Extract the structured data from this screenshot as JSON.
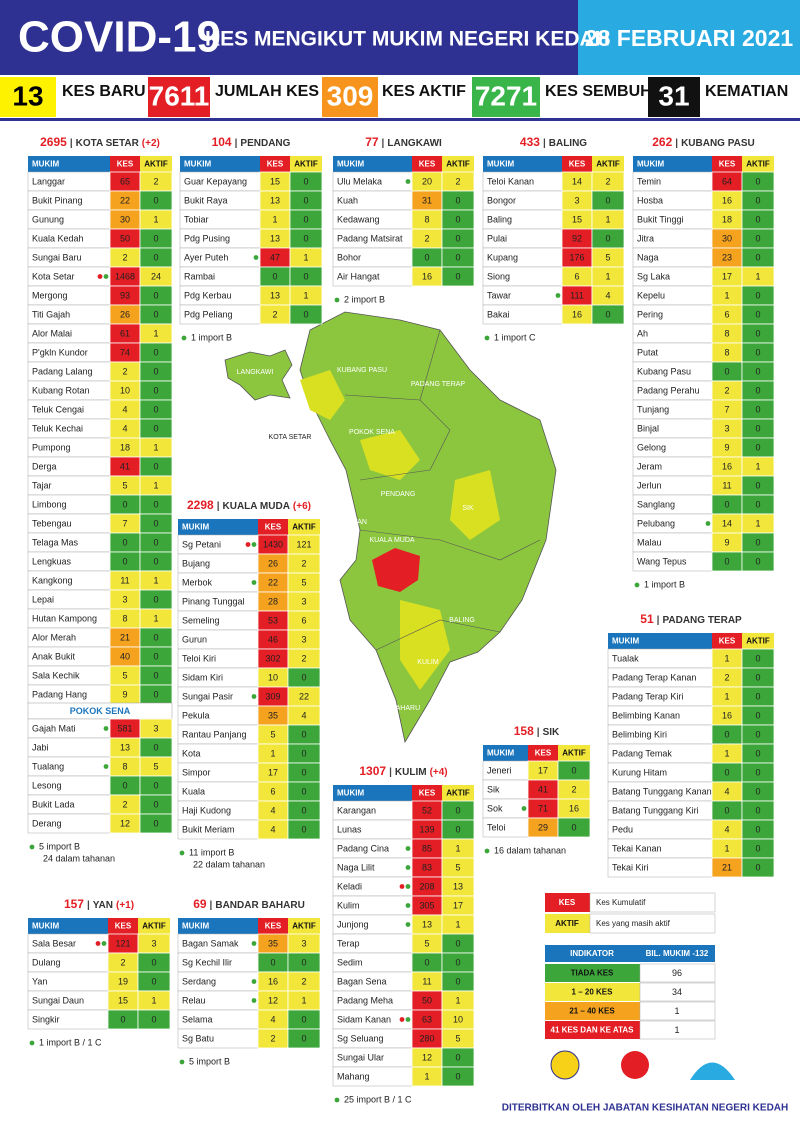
{
  "header": {
    "title": "COVID-19",
    "subtitle": "KES MENGIKUT MUKIM NEGERI KEDAH",
    "date": "28 FEBRUARI 2021"
  },
  "summary": [
    {
      "value": 13,
      "label": "KES BARU",
      "color": "#fff200",
      "text_color": "#000000"
    },
    {
      "value": 7611,
      "label": "JUMLAH KES",
      "color": "#e31e24",
      "text_color": "#ffffff"
    },
    {
      "value": 309,
      "label": "KES AKTIF",
      "color": "#f7941d",
      "text_color": "#ffffff"
    },
    {
      "value": 7271,
      "label": "KES SEMBUH",
      "color": "#39b54a",
      "text_color": "#ffffff"
    },
    {
      "value": 31,
      "label": "KEMATIAN",
      "color": "#111111",
      "text_color": "#ffffff"
    }
  ],
  "table_headers": [
    "MUKIM",
    "KES",
    "AKTIF"
  ],
  "kes_colors": [
    {
      "max": 0,
      "color": "#3da63a"
    },
    {
      "max": 20,
      "color": "#f2e63a"
    },
    {
      "max": 40,
      "color": "#f5a21e"
    },
    {
      "color": "#e31e24"
    }
  ],
  "aktif_colors": [
    {
      "max": 0,
      "color": "#3da63a"
    },
    {
      "color": "#f2e63a"
    }
  ],
  "tables": [
    {
      "total": 2695,
      "name": "KOTA SETAR",
      "extra": "(+2)",
      "rows": [
        [
          "Langgar",
          65,
          2
        ],
        [
          "Bukit Pinang",
          22,
          0
        ],
        [
          "Gunung",
          30,
          1
        ],
        [
          "Kuala Kedah",
          50,
          0
        ],
        [
          "Sungai Baru",
          2,
          0
        ],
        [
          "Kota Setar",
          1468,
          24,
          [
            "#e31e24",
            "#3da63a"
          ]
        ],
        [
          "Mergong",
          93,
          0
        ],
        [
          "Titi Gajah",
          26,
          0
        ],
        [
          "Alor Malai",
          61,
          1
        ],
        [
          "P'gkln Kundor",
          74,
          0
        ],
        [
          "Padang Lalang",
          2,
          0
        ],
        [
          "Kubang Rotan",
          10,
          0
        ],
        [
          "Teluk Cengai",
          4,
          0
        ],
        [
          "Teluk Kechai",
          4,
          0
        ],
        [
          "Pumpong",
          18,
          1
        ],
        [
          "Derga",
          41,
          0
        ],
        [
          "Tajar",
          5,
          1
        ],
        [
          "Limbong",
          0,
          0
        ],
        [
          "Tebengau",
          7,
          0
        ],
        [
          "Telaga Mas",
          0,
          0
        ],
        [
          "Lengkuas",
          0,
          0
        ],
        [
          "Kangkong",
          11,
          1
        ],
        [
          "Lepai",
          3,
          0
        ],
        [
          "Hutan Kampong",
          8,
          1
        ],
        [
          "Alor Merah",
          21,
          0
        ],
        [
          "Anak Bukit",
          40,
          0
        ],
        [
          "Sala Kechik",
          5,
          0
        ],
        [
          "Padang Hang",
          9,
          0
        ]
      ]
    },
    {
      "name": "POKOK SENA",
      "rows": [
        [
          "Gajah Mati",
          581,
          3,
          [
            "#3da63a"
          ]
        ],
        [
          "Jabi",
          13,
          0
        ],
        [
          "Tualang",
          8,
          5,
          [
            "#3da63a"
          ]
        ],
        [
          "Lesong",
          0,
          0
        ],
        [
          "Bukit Lada",
          2,
          0
        ],
        [
          "Derang",
          12,
          0
        ]
      ],
      "notes": [
        "5 import B",
        "24 dalam tahanan"
      ]
    },
    {
      "total": 104,
      "name": "PENDANG",
      "rows": [
        [
          "Guar Kepayang",
          15,
          0
        ],
        [
          "Bukit Raya",
          13,
          0
        ],
        [
          "Tobiar",
          1,
          0
        ],
        [
          "Pdg Pusing",
          13,
          0
        ],
        [
          "Ayer Puteh",
          47,
          1,
          [
            "#3da63a"
          ]
        ],
        [
          "Rambai",
          0,
          0
        ],
        [
          "Pdg Kerbau",
          13,
          1
        ],
        [
          "Pdg Peliang",
          2,
          0
        ]
      ],
      "notes": [
        "1 import B"
      ]
    },
    {
      "total": 77,
      "name": "LANGKAWI",
      "rows": [
        [
          "Ulu Melaka",
          20,
          2,
          [
            "#3da63a"
          ]
        ],
        [
          "Kuah",
          31,
          0
        ],
        [
          "Kedawang",
          8,
          0
        ],
        [
          "Padang Matsirat",
          2,
          0
        ],
        [
          "Bohor",
          0,
          0
        ],
        [
          "Air Hangat",
          16,
          0
        ]
      ],
      "notes": [
        "2 import B"
      ]
    },
    {
      "total": 433,
      "name": "BALING",
      "rows": [
        [
          "Teloi Kanan",
          14,
          2
        ],
        [
          "Bongor",
          3,
          0
        ],
        [
          "Baling",
          15,
          1
        ],
        [
          "Pulai",
          92,
          0
        ],
        [
          "Kupang",
          176,
          5
        ],
        [
          "Siong",
          6,
          1
        ],
        [
          "Tawar",
          111,
          4,
          [
            "#3da63a"
          ]
        ],
        [
          "Bakai",
          16,
          0
        ]
      ],
      "notes": [
        "1 import C"
      ]
    },
    {
      "total": 262,
      "name": "KUBANG PASU",
      "rows": [
        [
          "Temin",
          64,
          0
        ],
        [
          "Hosba",
          16,
          0
        ],
        [
          "Bukit Tinggi",
          18,
          0
        ],
        [
          "Jitra",
          30,
          0
        ],
        [
          "Naga",
          23,
          0
        ],
        [
          "Sg Laka",
          17,
          1
        ],
        [
          "Kepelu",
          1,
          0
        ],
        [
          "Pering",
          6,
          0
        ],
        [
          "Ah",
          8,
          0
        ],
        [
          "Putat",
          8,
          0
        ],
        [
          "Kubang Pasu",
          0,
          0
        ],
        [
          "Padang Perahu",
          2,
          0
        ],
        [
          "Tunjang",
          7,
          0
        ],
        [
          "Binjal",
          3,
          0
        ],
        [
          "Gelong",
          9,
          0
        ],
        [
          "Jeram",
          16,
          1
        ],
        [
          "Jerlun",
          11,
          0
        ],
        [
          "Sanglang",
          0,
          0
        ],
        [
          "Pelubang",
          14,
          1,
          [
            "#3da63a"
          ]
        ],
        [
          "Malau",
          9,
          0
        ],
        [
          "Wang Tepus",
          0,
          0
        ]
      ],
      "notes": [
        "1 import B"
      ]
    },
    {
      "total": 2298,
      "name": "KUALA MUDA",
      "extra": "(+6)",
      "rows": [
        [
          "Sg Petani",
          1430,
          121,
          [
            "#e31e24",
            "#3da63a"
          ]
        ],
        [
          "Bujang",
          26,
          2
        ],
        [
          "Merbok",
          22,
          5,
          [
            "#3da63a"
          ]
        ],
        [
          "Pinang Tunggal",
          28,
          3
        ],
        [
          "Semeling",
          53,
          6
        ],
        [
          "Gurun",
          46,
          3
        ],
        [
          "Teloi Kiri",
          302,
          2
        ],
        [
          "Sidam Kiri",
          10,
          0
        ],
        [
          "Sungai Pasir",
          309,
          22,
          [
            "#3da63a"
          ]
        ],
        [
          "Pekula",
          35,
          4
        ],
        [
          "Rantau Panjang",
          5,
          0
        ],
        [
          "Kota",
          1,
          0
        ],
        [
          "Simpor",
          17,
          0
        ],
        [
          "Kuala",
          6,
          0
        ],
        [
          "Haji Kudong",
          4,
          0
        ],
        [
          "Bukit Meriam",
          4,
          0
        ]
      ],
      "notes": [
        "11 import B",
        "22 dalam tahanan"
      ]
    },
    {
      "total": 51,
      "name": "PADANG TERAP",
      "rows": [
        [
          "Tualak",
          1,
          0
        ],
        [
          "Padang Terap Kanan",
          2,
          0
        ],
        [
          "Padang Terap Kiri",
          1,
          0
        ],
        [
          "Belimbing Kanan",
          16,
          0
        ],
        [
          "Belimbing Kiri",
          0,
          0
        ],
        [
          "Padang Temak",
          1,
          0
        ],
        [
          "Kurung Hitam",
          0,
          0
        ],
        [
          "Batang Tunggang Kanan",
          4,
          0
        ],
        [
          "Batang Tunggang Kiri",
          0,
          0
        ],
        [
          "Pedu",
          4,
          0
        ],
        [
          "Tekai Kanan",
          1,
          0
        ],
        [
          "Tekai Kiri",
          21,
          0
        ]
      ]
    },
    {
      "total": 158,
      "name": "SIK",
      "rows": [
        [
          "Jeneri",
          17,
          0
        ],
        [
          "Sik",
          41,
          2
        ],
        [
          "Sok",
          71,
          16,
          [
            "#3da63a"
          ]
        ],
        [
          "Teloi",
          29,
          0
        ]
      ],
      "notes": [
        "16 dalam tahanan"
      ]
    },
    {
      "total": 1307,
      "name": "KULIM",
      "extra": "(+4)",
      "rows": [
        [
          "Karangan",
          52,
          0
        ],
        [
          "Lunas",
          139,
          0
        ],
        [
          "Padang Cina",
          85,
          1,
          [
            "#3da63a"
          ]
        ],
        [
          "Naga Lilit",
          83,
          5,
          [
            "#3da63a"
          ]
        ],
        [
          "Keladi",
          208,
          13,
          [
            "#e31e24",
            "#3da63a"
          ]
        ],
        [
          "Kulim",
          305,
          17,
          [
            "#3da63a"
          ]
        ],
        [
          "Junjong",
          13,
          1,
          [
            "#3da63a"
          ]
        ],
        [
          "Terap",
          5,
          0
        ],
        [
          "Sedim",
          0,
          0
        ],
        [
          "Bagan Sena",
          11,
          0
        ],
        [
          "Padang Meha",
          50,
          1
        ],
        [
          "Sidam Kanan",
          63,
          10,
          [
            "#e31e24",
            "#3da63a"
          ]
        ],
        [
          "Sg Seluang",
          280,
          5
        ],
        [
          "Sungai Ular",
          12,
          0
        ],
        [
          "Mahang",
          1,
          0
        ]
      ],
      "notes": [
        "25 import B / 1 C"
      ]
    },
    {
      "total": 157,
      "name": "YAN",
      "extra": "(+1)",
      "rows": [
        [
          "Sala Besar",
          121,
          3,
          [
            "#e31e24",
            "#3da63a"
          ]
        ],
        [
          "Dulang",
          2,
          0
        ],
        [
          "Yan",
          19,
          0
        ],
        [
          "Sungai Daun",
          15,
          1
        ],
        [
          "Singkir",
          0,
          0
        ]
      ],
      "notes": [
        "1 import B / 1 C"
      ]
    },
    {
      "total": 69,
      "name": "BANDAR BAHARU",
      "rows": [
        [
          "Bagan Samak",
          35,
          3,
          [
            "#3da63a"
          ]
        ],
        [
          "Sg Kechil Ilir",
          0,
          0
        ],
        [
          "Serdang",
          16,
          2,
          [
            "#3da63a"
          ]
        ],
        [
          "Relau",
          12,
          1,
          [
            "#3da63a"
          ]
        ],
        [
          "Selama",
          4,
          0
        ],
        [
          "Sg Batu",
          2,
          0
        ]
      ],
      "notes": [
        "5 import B"
      ]
    }
  ],
  "map_labels": [
    "LANGKAWI",
    "KUBANG PASU",
    "PADANG TERAP",
    "KOTA SETAR",
    "POKOK SENA",
    "PENDANG",
    "SIK",
    "YAN",
    "KUALA MUDA",
    "BALING",
    "KULIM",
    "BANDAR BAHARU"
  ],
  "legend": [
    {
      "key": "KES",
      "text": "Kes Kumulatif"
    },
    {
      "key": "AKTIF",
      "text": "Kes yang masih aktif"
    }
  ],
  "indikator": {
    "headers": [
      "INDIKATOR",
      "BIL. MUKIM -132"
    ],
    "rows": [
      [
        "TIADA KES",
        96
      ],
      [
        "1 – 20 KES",
        34
      ],
      [
        "21 – 40 KES",
        1
      ],
      [
        "41 KES DAN KE ATAS",
        1
      ]
    ]
  },
  "footer": "DITERBITKAN OLEH JABATAN KESIHATAN NEGERI KEDAH"
}
